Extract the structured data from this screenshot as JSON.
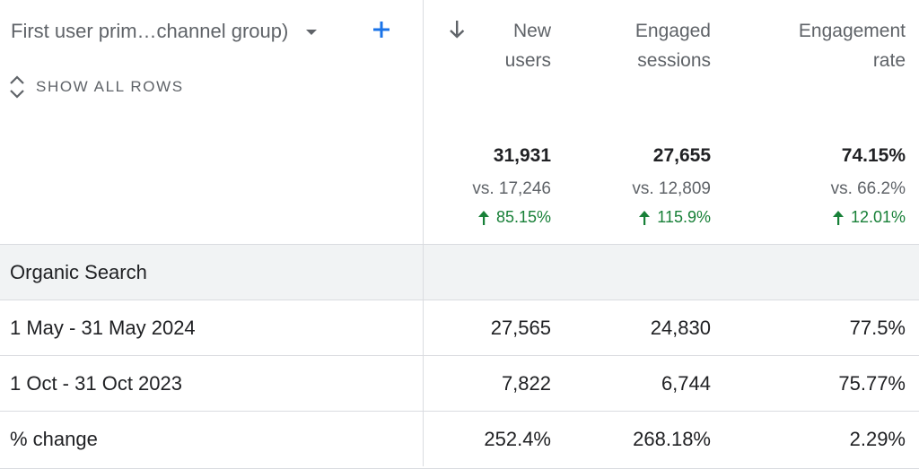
{
  "dimension": {
    "label": "First user prim…channel group)",
    "show_all_rows": "SHOW ALL ROWS"
  },
  "columns": [
    {
      "line1": "New",
      "line2": "users",
      "total": "31,931",
      "vs": "vs. 17,246",
      "change": "85.15%"
    },
    {
      "line1": "Engaged",
      "line2": "sessions",
      "total": "27,655",
      "vs": "vs. 12,809",
      "change": "115.9%"
    },
    {
      "line1": "Engagement",
      "line2": "rate",
      "total": "74.15%",
      "vs": "vs. 66.2%",
      "change": "12.01%"
    }
  ],
  "rows": [
    {
      "label": "Organic Search",
      "values": [
        "",
        "",
        ""
      ]
    },
    {
      "label": "1 May - 31 May 2024",
      "values": [
        "27,565",
        "24,830",
        "77.5%"
      ]
    },
    {
      "label": "1 Oct - 31 Oct 2023",
      "values": [
        "7,822",
        "6,744",
        "75.77%"
      ]
    },
    {
      "label": "% change",
      "values": [
        "252.4%",
        "268.18%",
        "2.29%"
      ]
    }
  ],
  "colors": {
    "accent_blue": "#1a73e8",
    "positive_green": "#188038",
    "border": "#dadce0",
    "group_bg": "#f1f3f4"
  },
  "icons": {
    "sort": "arrow-down-icon",
    "add": "plus-icon",
    "expand": "unfold-icon",
    "trend": "arrow-up-icon"
  }
}
